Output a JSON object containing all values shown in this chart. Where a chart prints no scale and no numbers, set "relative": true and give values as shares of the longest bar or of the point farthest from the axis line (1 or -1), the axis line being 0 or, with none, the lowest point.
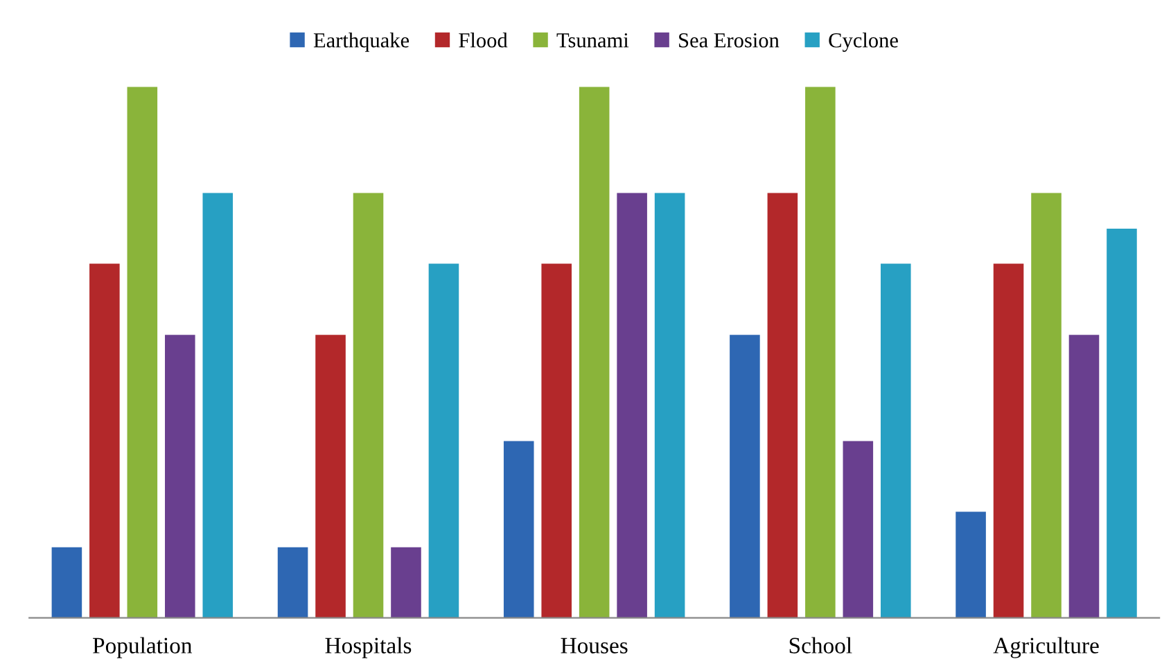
{
  "chart_data": {
    "type": "bar",
    "relative": true,
    "categories": [
      "Population",
      "Hospitals",
      "Houses",
      "School",
      "Agriculture"
    ],
    "series": [
      {
        "name": "Earthquake",
        "color": "#2e67b3",
        "values": [
          0.133,
          0.133,
          0.333,
          0.533,
          0.2
        ]
      },
      {
        "name": "Flood",
        "color": "#b3282a",
        "values": [
          0.667,
          0.533,
          0.667,
          0.8,
          0.667
        ]
      },
      {
        "name": "Tsunami",
        "color": "#8ab43a",
        "values": [
          1,
          0.8,
          1,
          1,
          0.8
        ]
      },
      {
        "name": "Sea Erosion",
        "color": "#693f8f",
        "values": [
          0.533,
          0.133,
          0.8,
          0.333,
          0.533
        ]
      },
      {
        "name": "Cyclone",
        "color": "#27a0c3",
        "values": [
          0.8,
          0.667,
          0.8,
          0.667,
          0.733
        ]
      }
    ],
    "legend": "top",
    "grid": false
  }
}
